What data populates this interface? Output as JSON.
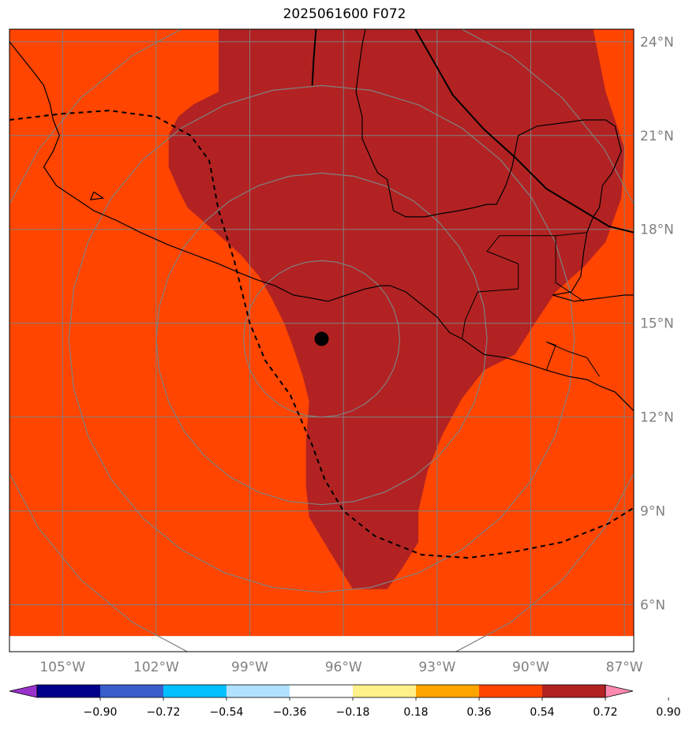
{
  "title": "2025061600 F072",
  "map": {
    "lon_range": [
      -106.7,
      -86.7
    ],
    "lat_range": [
      4.5,
      24.4
    ],
    "data_lat_min": 5.0,
    "lat_ticks": [
      {
        "lat": 24,
        "label": "24°N"
      },
      {
        "lat": 21,
        "label": "21°N"
      },
      {
        "lat": 18,
        "label": "18°N"
      },
      {
        "lat": 15,
        "label": "15°N"
      },
      {
        "lat": 12,
        "label": "12°N"
      },
      {
        "lat": 9,
        "label": "9°N"
      },
      {
        "lat": 6,
        "label": "6°N"
      }
    ],
    "lon_ticks": [
      {
        "lon": -105,
        "label": "105°W"
      },
      {
        "lon": -102,
        "label": "102°W"
      },
      {
        "lon": -99,
        "label": "99°W"
      },
      {
        "lon": -96,
        "label": "96°W"
      },
      {
        "lon": -93,
        "label": "93°W"
      },
      {
        "lon": -90,
        "label": "90°W"
      },
      {
        "lon": -87,
        "label": "87°W"
      }
    ],
    "center": {
      "lon": -96.7,
      "lat": 14.5
    },
    "range_rings_deg": [
      2.5,
      5.3,
      8.1,
      10.9
    ],
    "colors": {
      "background_field": "#ff4500",
      "high_field": "#b22222",
      "grid": "#808080",
      "rings": "#808080",
      "coast": "#000000",
      "tick_label": "#808080"
    },
    "high_field_polygon": [
      [
        -100.0,
        24.4
      ],
      [
        -88.0,
        24.4
      ],
      [
        -87.6,
        22.4
      ],
      [
        -87.3,
        21.5
      ],
      [
        -87.0,
        20.6
      ],
      [
        -87.1,
        19.0
      ],
      [
        -87.6,
        17.6
      ],
      [
        -88.3,
        16.8
      ],
      [
        -89.2,
        16.0
      ],
      [
        -90.0,
        14.8
      ],
      [
        -90.5,
        14.0
      ],
      [
        -91.5,
        13.5
      ],
      [
        -92.2,
        12.6
      ],
      [
        -92.8,
        11.5
      ],
      [
        -93.3,
        10.3
      ],
      [
        -93.6,
        9.0
      ],
      [
        -93.6,
        8.0
      ],
      [
        -94.1,
        7.2
      ],
      [
        -94.6,
        6.5
      ],
      [
        -95.7,
        6.5
      ],
      [
        -96.5,
        7.8
      ],
      [
        -97.1,
        8.8
      ],
      [
        -97.2,
        9.8
      ],
      [
        -97.2,
        11.2
      ],
      [
        -97.1,
        12.5
      ],
      [
        -97.3,
        13.3
      ],
      [
        -97.6,
        14.2
      ],
      [
        -97.9,
        15.0
      ],
      [
        -98.3,
        15.8
      ],
      [
        -98.7,
        16.5
      ],
      [
        -99.3,
        17.2
      ],
      [
        -100.2,
        18.0
      ],
      [
        -101.0,
        18.7
      ],
      [
        -101.3,
        19.3
      ],
      [
        -101.6,
        20.0
      ],
      [
        -101.6,
        21.0
      ],
      [
        -101.3,
        21.6
      ],
      [
        -100.8,
        22.0
      ],
      [
        -100.0,
        22.4
      ],
      [
        -100.0,
        24.4
      ]
    ],
    "coastlines": [
      [
        [
          -106.7,
          24.0
        ],
        [
          -106.3,
          23.5
        ],
        [
          -105.9,
          23.0
        ],
        [
          -105.6,
          22.6
        ],
        [
          -105.4,
          22.0
        ],
        [
          -105.3,
          21.5
        ],
        [
          -105.1,
          21.0
        ],
        [
          -105.3,
          20.5
        ],
        [
          -105.6,
          20.0
        ],
        [
          -105.2,
          19.4
        ],
        [
          -104.6,
          19.0
        ],
        [
          -104.0,
          18.6
        ],
        [
          -103.3,
          18.3
        ],
        [
          -102.5,
          17.9
        ],
        [
          -101.6,
          17.5
        ],
        [
          -100.8,
          17.2
        ],
        [
          -100.0,
          16.9
        ],
        [
          -99.3,
          16.6
        ],
        [
          -98.8,
          16.4
        ],
        [
          -98.2,
          16.2
        ],
        [
          -97.6,
          15.9
        ],
        [
          -97.0,
          15.8
        ],
        [
          -96.5,
          15.7
        ],
        [
          -95.9,
          15.9
        ],
        [
          -95.3,
          16.1
        ],
        [
          -94.8,
          16.2
        ],
        [
          -94.5,
          16.2
        ],
        [
          -94.0,
          16.0
        ],
        [
          -93.5,
          15.6
        ],
        [
          -93.0,
          15.2
        ],
        [
          -92.6,
          14.7
        ],
        [
          -92.2,
          14.5
        ],
        [
          -91.5,
          14.0
        ],
        [
          -90.8,
          13.9
        ],
        [
          -90.1,
          13.7
        ],
        [
          -89.5,
          13.5
        ],
        [
          -88.8,
          13.3
        ],
        [
          -88.2,
          13.2
        ],
        [
          -87.8,
          13.0
        ],
        [
          -87.3,
          12.8
        ],
        [
          -86.7,
          12.2
        ]
      ],
      [
        [
          -95.3,
          24.4
        ],
        [
          -95.4,
          23.9
        ],
        [
          -95.5,
          23.2
        ],
        [
          -95.6,
          22.4
        ],
        [
          -95.4,
          21.6
        ],
        [
          -95.4,
          20.9
        ],
        [
          -95.0,
          20.0
        ],
        [
          -94.9,
          19.8
        ],
        [
          -94.6,
          19.6
        ],
        [
          -94.4,
          18.6
        ],
        [
          -94.0,
          18.4
        ],
        [
          -93.4,
          18.4
        ],
        [
          -92.9,
          18.5
        ],
        [
          -92.3,
          18.6
        ],
        [
          -91.8,
          18.7
        ],
        [
          -91.4,
          18.8
        ],
        [
          -91.1,
          18.8
        ],
        [
          -90.8,
          19.4
        ],
        [
          -90.6,
          20.0
        ],
        [
          -90.4,
          21.0
        ],
        [
          -89.8,
          21.3
        ],
        [
          -89.0,
          21.4
        ],
        [
          -88.3,
          21.5
        ],
        [
          -87.6,
          21.5
        ],
        [
          -87.3,
          21.3
        ],
        [
          -87.1,
          20.5
        ],
        [
          -87.4,
          19.8
        ],
        [
          -87.7,
          19.4
        ],
        [
          -87.8,
          18.7
        ],
        [
          -88.0,
          18.4
        ],
        [
          -88.2,
          17.9
        ],
        [
          -88.3,
          17.3
        ],
        [
          -88.4,
          16.5
        ],
        [
          -88.7,
          16.0
        ],
        [
          -89.3,
          15.9
        ],
        [
          -88.6,
          15.7
        ],
        [
          -87.8,
          15.8
        ],
        [
          -87.0,
          15.9
        ],
        [
          -86.7,
          15.9
        ]
      ],
      [
        [
          -104.0,
          19.2
        ],
        [
          -104.1,
          18.95
        ],
        [
          -103.7,
          19.0
        ],
        [
          -104.0,
          19.2
        ]
      ]
    ],
    "borders": [
      [
        [
          -92.2,
          14.5
        ],
        [
          -92.1,
          15.1
        ],
        [
          -91.7,
          16.0
        ],
        [
          -90.4,
          16.1
        ],
        [
          -90.4,
          16.9
        ],
        [
          -91.4,
          17.3
        ],
        [
          -91.0,
          17.8
        ],
        [
          -89.2,
          17.8
        ],
        [
          -89.2,
          16.3
        ],
        [
          -88.3,
          15.7
        ]
      ],
      [
        [
          -89.2,
          17.8
        ],
        [
          -88.2,
          17.9
        ]
      ],
      [
        [
          -89.5,
          13.5
        ],
        [
          -89.2,
          14.3
        ],
        [
          -89.5,
          14.4
        ],
        [
          -88.8,
          14.1
        ],
        [
          -88.2,
          13.9
        ],
        [
          -87.8,
          13.3
        ]
      ]
    ],
    "solid_track": [
      [
        -93.7,
        24.4
      ],
      [
        -92.5,
        22.3
      ],
      [
        -91.5,
        21.2
      ],
      [
        -90.5,
        20.3
      ],
      [
        -89.5,
        19.3
      ],
      [
        -88.5,
        18.7
      ],
      [
        -87.5,
        18.1
      ],
      [
        -86.7,
        17.9
      ]
    ],
    "solid_track_2": [
      [
        -96.88,
        24.4
      ],
      [
        -96.95,
        23.5
      ],
      [
        -97.0,
        22.6
      ]
    ],
    "dashed_track": [
      [
        -106.7,
        21.5
      ],
      [
        -105.0,
        21.7
      ],
      [
        -103.5,
        21.8
      ],
      [
        -102.0,
        21.6
      ],
      [
        -100.9,
        21.0
      ],
      [
        -100.3,
        20.2
      ],
      [
        -100.0,
        18.6
      ],
      [
        -99.5,
        17.0
      ],
      [
        -99.0,
        15.0
      ],
      [
        -98.5,
        13.8
      ],
      [
        -97.7,
        12.7
      ],
      [
        -97.0,
        11.1
      ],
      [
        -96.6,
        10.0
      ],
      [
        -96.0,
        9.0
      ],
      [
        -95.0,
        8.2
      ],
      [
        -93.5,
        7.6
      ],
      [
        -92.0,
        7.5
      ],
      [
        -90.5,
        7.7
      ],
      [
        -89.0,
        8.0
      ],
      [
        -87.5,
        8.6
      ],
      [
        -86.7,
        9.1
      ]
    ],
    "tracks": {
      "solid_width": 2,
      "dashed_width": 2,
      "dash": "6 5"
    }
  },
  "colorbar": {
    "boundaries": [
      -0.9,
      -0.72,
      -0.54,
      -0.36,
      -0.18,
      0.18,
      0.36,
      0.54,
      0.72,
      0.9
    ],
    "labels": [
      "−0.90",
      "−0.72",
      "−0.54",
      "−0.36",
      "−0.18",
      "0.18",
      "0.36",
      "0.54",
      "0.72",
      "0.90"
    ],
    "colors": [
      "#9932cc",
      "#00008b",
      "#3a5fcd",
      "#00bfff",
      "#b0e2ff",
      "#ffffff",
      "#fff08c",
      "#ffa500",
      "#ff4500",
      "#b22222",
      "#ff8ab0"
    ]
  }
}
